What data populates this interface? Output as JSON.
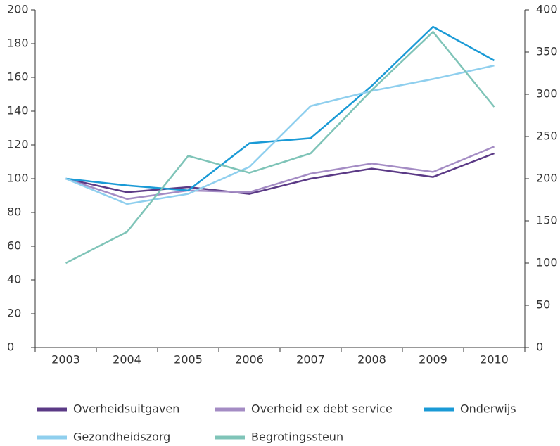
{
  "chart_data": {
    "type": "line",
    "categories": [
      "2003",
      "2004",
      "2005",
      "2006",
      "2007",
      "2008",
      "2009",
      "2010"
    ],
    "series": [
      {
        "name": "Overheidsuitgaven",
        "color": "#5b3a86",
        "values": [
          100,
          92,
          95,
          91,
          100,
          106,
          101,
          115
        ]
      },
      {
        "name": "Overheid ex debt service",
        "color": "#a48cc4",
        "values": [
          100,
          88,
          93,
          92,
          103,
          109,
          104,
          119
        ]
      },
      {
        "name": "Onderwijs",
        "color": "#1a9ad6",
        "values": [
          100,
          96,
          93,
          121,
          124,
          155,
          190,
          170
        ]
      },
      {
        "name": "Gezondheidszorg",
        "color": "#8fcfee",
        "values": [
          100,
          85,
          91,
          107,
          143,
          152,
          159,
          167
        ]
      },
      {
        "name": "Begrotingssteun",
        "color": "#7fc4b8",
        "axis": "y2",
        "values": [
          100,
          137,
          227,
          207,
          230,
          305,
          374,
          285
        ]
      }
    ],
    "ylim": [
      0,
      200
    ],
    "yticks": [
      0,
      20,
      40,
      60,
      80,
      100,
      120,
      140,
      160,
      180,
      200
    ],
    "y2lim": [
      0,
      400
    ],
    "y2ticks": [
      0,
      50,
      100,
      150,
      200,
      250,
      300,
      350,
      400
    ],
    "grid": false
  }
}
